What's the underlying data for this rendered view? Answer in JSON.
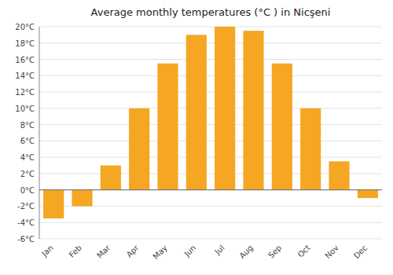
{
  "chart_data": {
    "type": "bar",
    "title": "Average monthly temperatures (°C ) in Nicşeni",
    "categories": [
      "Jan",
      "Feb",
      "Mar",
      "Apr",
      "May",
      "Jun",
      "Jul",
      "Aug",
      "Sep",
      "Oct",
      "Nov",
      "Dec"
    ],
    "values": [
      -3.5,
      -2.0,
      3.0,
      10.0,
      15.5,
      19.0,
      20.0,
      19.5,
      15.5,
      10.0,
      3.5,
      -1.0
    ],
    "color": "#f5a623",
    "ylim": [
      -6,
      20
    ],
    "yticks": [
      {
        "value": -6,
        "label": "-6°C"
      },
      {
        "value": -4,
        "label": "-4°C"
      },
      {
        "value": -2,
        "label": "-2°C"
      },
      {
        "value": 0,
        "label": "0°C"
      },
      {
        "value": 2,
        "label": "2°C"
      },
      {
        "value": 4,
        "label": "4°C"
      },
      {
        "value": 6,
        "label": "6°C"
      },
      {
        "value": 8,
        "label": "8°C"
      },
      {
        "value": 10,
        "label": "10°C"
      },
      {
        "value": 12,
        "label": "12°C"
      },
      {
        "value": 14,
        "label": "14°C"
      },
      {
        "value": 16,
        "label": "16°C"
      },
      {
        "value": 18,
        "label": "18°C"
      },
      {
        "value": 20,
        "label": "20°C"
      }
    ],
    "grid": true
  }
}
